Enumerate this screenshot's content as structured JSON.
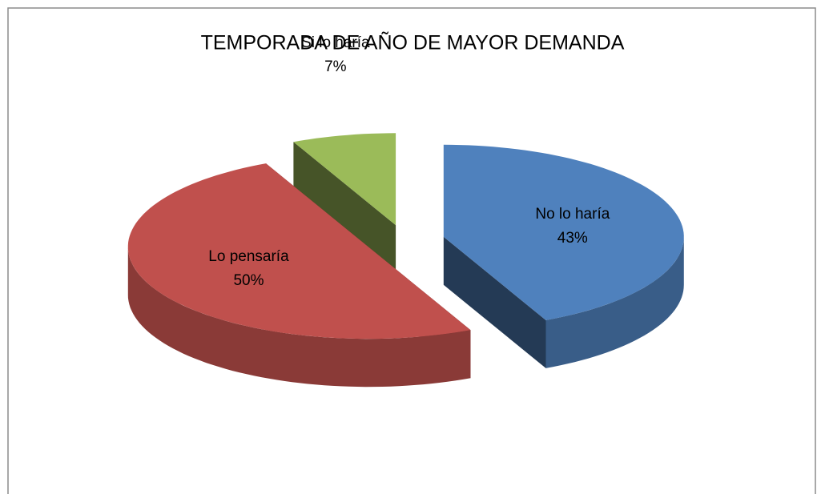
{
  "chart_data": {
    "type": "pie",
    "title": "TEMPORADA DE AÑO DE MAYOR DEMANDA",
    "categories": [
      "No lo haría",
      "Lo pensaría",
      "Si lo haría"
    ],
    "values": [
      43,
      50,
      7
    ],
    "value_labels": [
      "43%",
      "50%",
      "7%"
    ],
    "colors": [
      "#4f81bd",
      "#c0504d",
      "#9bbb59"
    ]
  }
}
